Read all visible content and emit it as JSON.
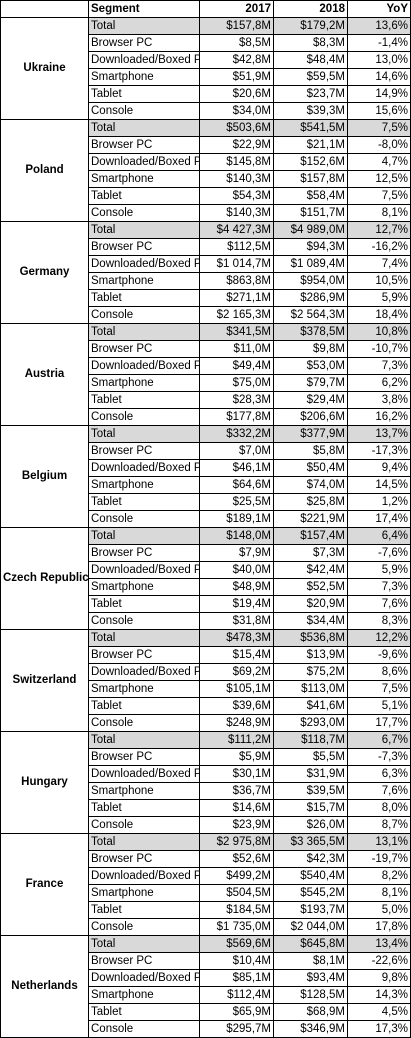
{
  "header": {
    "region": "",
    "segment": "Segment",
    "y2017": "2017",
    "y2018": "2018",
    "yoy": "YoY"
  },
  "regions": [
    {
      "name": "Ukraine",
      "rows": [
        {
          "segment": "Total",
          "v2017": "$157,8M",
          "v2018": "$179,2M",
          "yoy": "13,6%"
        },
        {
          "segment": "Browser PC",
          "v2017": "$8,5M",
          "v2018": "$8,3M",
          "yoy": "-1,4%"
        },
        {
          "segment": "Downloaded/Boxed PC",
          "v2017": "$42,8M",
          "v2018": "$48,4M",
          "yoy": "13,0%"
        },
        {
          "segment": "Smartphone",
          "v2017": "$51,9M",
          "v2018": "$59,5M",
          "yoy": "14,6%"
        },
        {
          "segment": "Tablet",
          "v2017": "$20,6M",
          "v2018": "$23,7M",
          "yoy": "14,9%"
        },
        {
          "segment": "Console",
          "v2017": "$34,0M",
          "v2018": "$39,3M",
          "yoy": "15,6%"
        }
      ]
    },
    {
      "name": "Poland",
      "rows": [
        {
          "segment": "Total",
          "v2017": "$503,6M",
          "v2018": "$541,5M",
          "yoy": "7,5%"
        },
        {
          "segment": "Browser PC",
          "v2017": "$22,9M",
          "v2018": "$21,1M",
          "yoy": "-8,0%"
        },
        {
          "segment": "Downloaded/Boxed PC",
          "v2017": "$145,8M",
          "v2018": "$152,6M",
          "yoy": "4,7%"
        },
        {
          "segment": "Smartphone",
          "v2017": "$140,3M",
          "v2018": "$157,8M",
          "yoy": "12,5%"
        },
        {
          "segment": "Tablet",
          "v2017": "$54,3M",
          "v2018": "$58,4M",
          "yoy": "7,5%"
        },
        {
          "segment": "Console",
          "v2017": "$140,3M",
          "v2018": "$151,7M",
          "yoy": "8,1%"
        }
      ]
    },
    {
      "name": "Germany",
      "rows": [
        {
          "segment": "Total",
          "v2017": "$4 427,3M",
          "v2018": "$4 989,0M",
          "yoy": "12,7%"
        },
        {
          "segment": "Browser PC",
          "v2017": "$112,5M",
          "v2018": "$94,3M",
          "yoy": "-16,2%"
        },
        {
          "segment": "Downloaded/Boxed PC",
          "v2017": "$1 014,7M",
          "v2018": "$1 089,4M",
          "yoy": "7,4%"
        },
        {
          "segment": "Smartphone",
          "v2017": "$863,8M",
          "v2018": "$954,0M",
          "yoy": "10,5%"
        },
        {
          "segment": "Tablet",
          "v2017": "$271,1M",
          "v2018": "$286,9M",
          "yoy": "5,9%"
        },
        {
          "segment": "Console",
          "v2017": "$2 165,3M",
          "v2018": "$2 564,3M",
          "yoy": "18,4%"
        }
      ]
    },
    {
      "name": "Austria",
      "rows": [
        {
          "segment": "Total",
          "v2017": "$341,5M",
          "v2018": "$378,5M",
          "yoy": "10,8%"
        },
        {
          "segment": "Browser PC",
          "v2017": "$11,0M",
          "v2018": "$9,8M",
          "yoy": "-10,7%"
        },
        {
          "segment": "Downloaded/Boxed PC",
          "v2017": "$49,4M",
          "v2018": "$53,0M",
          "yoy": "7,3%"
        },
        {
          "segment": "Smartphone",
          "v2017": "$75,0M",
          "v2018": "$79,7M",
          "yoy": "6,2%"
        },
        {
          "segment": "Tablet",
          "v2017": "$28,3M",
          "v2018": "$29,4M",
          "yoy": "3,8%"
        },
        {
          "segment": "Console",
          "v2017": "$177,8M",
          "v2018": "$206,6M",
          "yoy": "16,2%"
        }
      ]
    },
    {
      "name": "Belgium",
      "rows": [
        {
          "segment": "Total",
          "v2017": "$332,2M",
          "v2018": "$377,9M",
          "yoy": "13,7%"
        },
        {
          "segment": "Browser PC",
          "v2017": "$7,0M",
          "v2018": "$5,8M",
          "yoy": "-17,3%"
        },
        {
          "segment": "Downloaded/Boxed PC",
          "v2017": "$46,1M",
          "v2018": "$50,4M",
          "yoy": "9,4%"
        },
        {
          "segment": "Smartphone",
          "v2017": "$64,6M",
          "v2018": "$74,0M",
          "yoy": "14,5%"
        },
        {
          "segment": "Tablet",
          "v2017": "$25,5M",
          "v2018": "$25,8M",
          "yoy": "1,2%"
        },
        {
          "segment": "Console",
          "v2017": "$189,1M",
          "v2018": "$221,9M",
          "yoy": "17,4%"
        }
      ]
    },
    {
      "name": "Czech Republic",
      "rows": [
        {
          "segment": "Total",
          "v2017": "$148,0M",
          "v2018": "$157,4M",
          "yoy": "6,4%"
        },
        {
          "segment": "Browser PC",
          "v2017": "$7,9M",
          "v2018": "$7,3M",
          "yoy": "-7,6%"
        },
        {
          "segment": "Downloaded/Boxed PC",
          "v2017": "$40,0M",
          "v2018": "$42,4M",
          "yoy": "5,9%"
        },
        {
          "segment": "Smartphone",
          "v2017": "$48,9M",
          "v2018": "$52,5M",
          "yoy": "7,3%"
        },
        {
          "segment": "Tablet",
          "v2017": "$19,4M",
          "v2018": "$20,9M",
          "yoy": "7,6%"
        },
        {
          "segment": "Console",
          "v2017": "$31,8M",
          "v2018": "$34,4M",
          "yoy": "8,3%"
        }
      ]
    },
    {
      "name": "Switzerland",
      "rows": [
        {
          "segment": "Total",
          "v2017": "$478,3M",
          "v2018": "$536,8M",
          "yoy": "12,2%"
        },
        {
          "segment": "Browser PC",
          "v2017": "$15,4M",
          "v2018": "$13,9M",
          "yoy": "-9,6%"
        },
        {
          "segment": "Downloaded/Boxed PC",
          "v2017": "$69,2M",
          "v2018": "$75,2M",
          "yoy": "8,6%"
        },
        {
          "segment": "Smartphone",
          "v2017": "$105,1M",
          "v2018": "$113,0M",
          "yoy": "7,5%"
        },
        {
          "segment": "Tablet",
          "v2017": "$39,6M",
          "v2018": "$41,6M",
          "yoy": "5,1%"
        },
        {
          "segment": "Console",
          "v2017": "$248,9M",
          "v2018": "$293,0M",
          "yoy": "17,7%"
        }
      ]
    },
    {
      "name": "Hungary",
      "rows": [
        {
          "segment": "Total",
          "v2017": "$111,2M",
          "v2018": "$118,7M",
          "yoy": "6,7%"
        },
        {
          "segment": "Browser PC",
          "v2017": "$5,9M",
          "v2018": "$5,5M",
          "yoy": "-7,3%"
        },
        {
          "segment": "Downloaded/Boxed PC",
          "v2017": "$30,1M",
          "v2018": "$31,9M",
          "yoy": "6,3%"
        },
        {
          "segment": "Smartphone",
          "v2017": "$36,7M",
          "v2018": "$39,5M",
          "yoy": "7,6%"
        },
        {
          "segment": "Tablet",
          "v2017": "$14,6M",
          "v2018": "$15,7M",
          "yoy": "8,0%"
        },
        {
          "segment": "Console",
          "v2017": "$23,9M",
          "v2018": "$26,0M",
          "yoy": "8,7%"
        }
      ]
    },
    {
      "name": "France",
      "rows": [
        {
          "segment": "Total",
          "v2017": "$2 975,8M",
          "v2018": "$3 365,5M",
          "yoy": "13,1%"
        },
        {
          "segment": "Browser PC",
          "v2017": "$52,6M",
          "v2018": "$42,3M",
          "yoy": "-19,7%"
        },
        {
          "segment": "Downloaded/Boxed PC",
          "v2017": "$499,2M",
          "v2018": "$540,4M",
          "yoy": "8,2%"
        },
        {
          "segment": "Smartphone",
          "v2017": "$504,5M",
          "v2018": "$545,2M",
          "yoy": "8,1%"
        },
        {
          "segment": "Tablet",
          "v2017": "$184,5M",
          "v2018": "$193,7M",
          "yoy": "5,0%"
        },
        {
          "segment": "Console",
          "v2017": "$1 735,0M",
          "v2018": "$2 044,0M",
          "yoy": "17,8%"
        }
      ]
    },
    {
      "name": "Netherlands",
      "rows": [
        {
          "segment": "Total",
          "v2017": "$569,6M",
          "v2018": "$645,8M",
          "yoy": "13,4%"
        },
        {
          "segment": "Browser PC",
          "v2017": "$10,4M",
          "v2018": "$8,1M",
          "yoy": "-22,6%"
        },
        {
          "segment": "Downloaded/Boxed PC",
          "v2017": "$85,1M",
          "v2018": "$93,4M",
          "yoy": "9,8%"
        },
        {
          "segment": "Smartphone",
          "v2017": "$112,4M",
          "v2018": "$128,5M",
          "yoy": "14,3%"
        },
        {
          "segment": "Tablet",
          "v2017": "$65,9M",
          "v2018": "$68,9M",
          "yoy": "4,5%"
        },
        {
          "segment": "Console",
          "v2017": "$295,7M",
          "v2018": "$346,9M",
          "yoy": "17,3%"
        }
      ]
    }
  ],
  "colors": {
    "total_row_fill": "#d9d9d9",
    "grid": "#000000"
  }
}
